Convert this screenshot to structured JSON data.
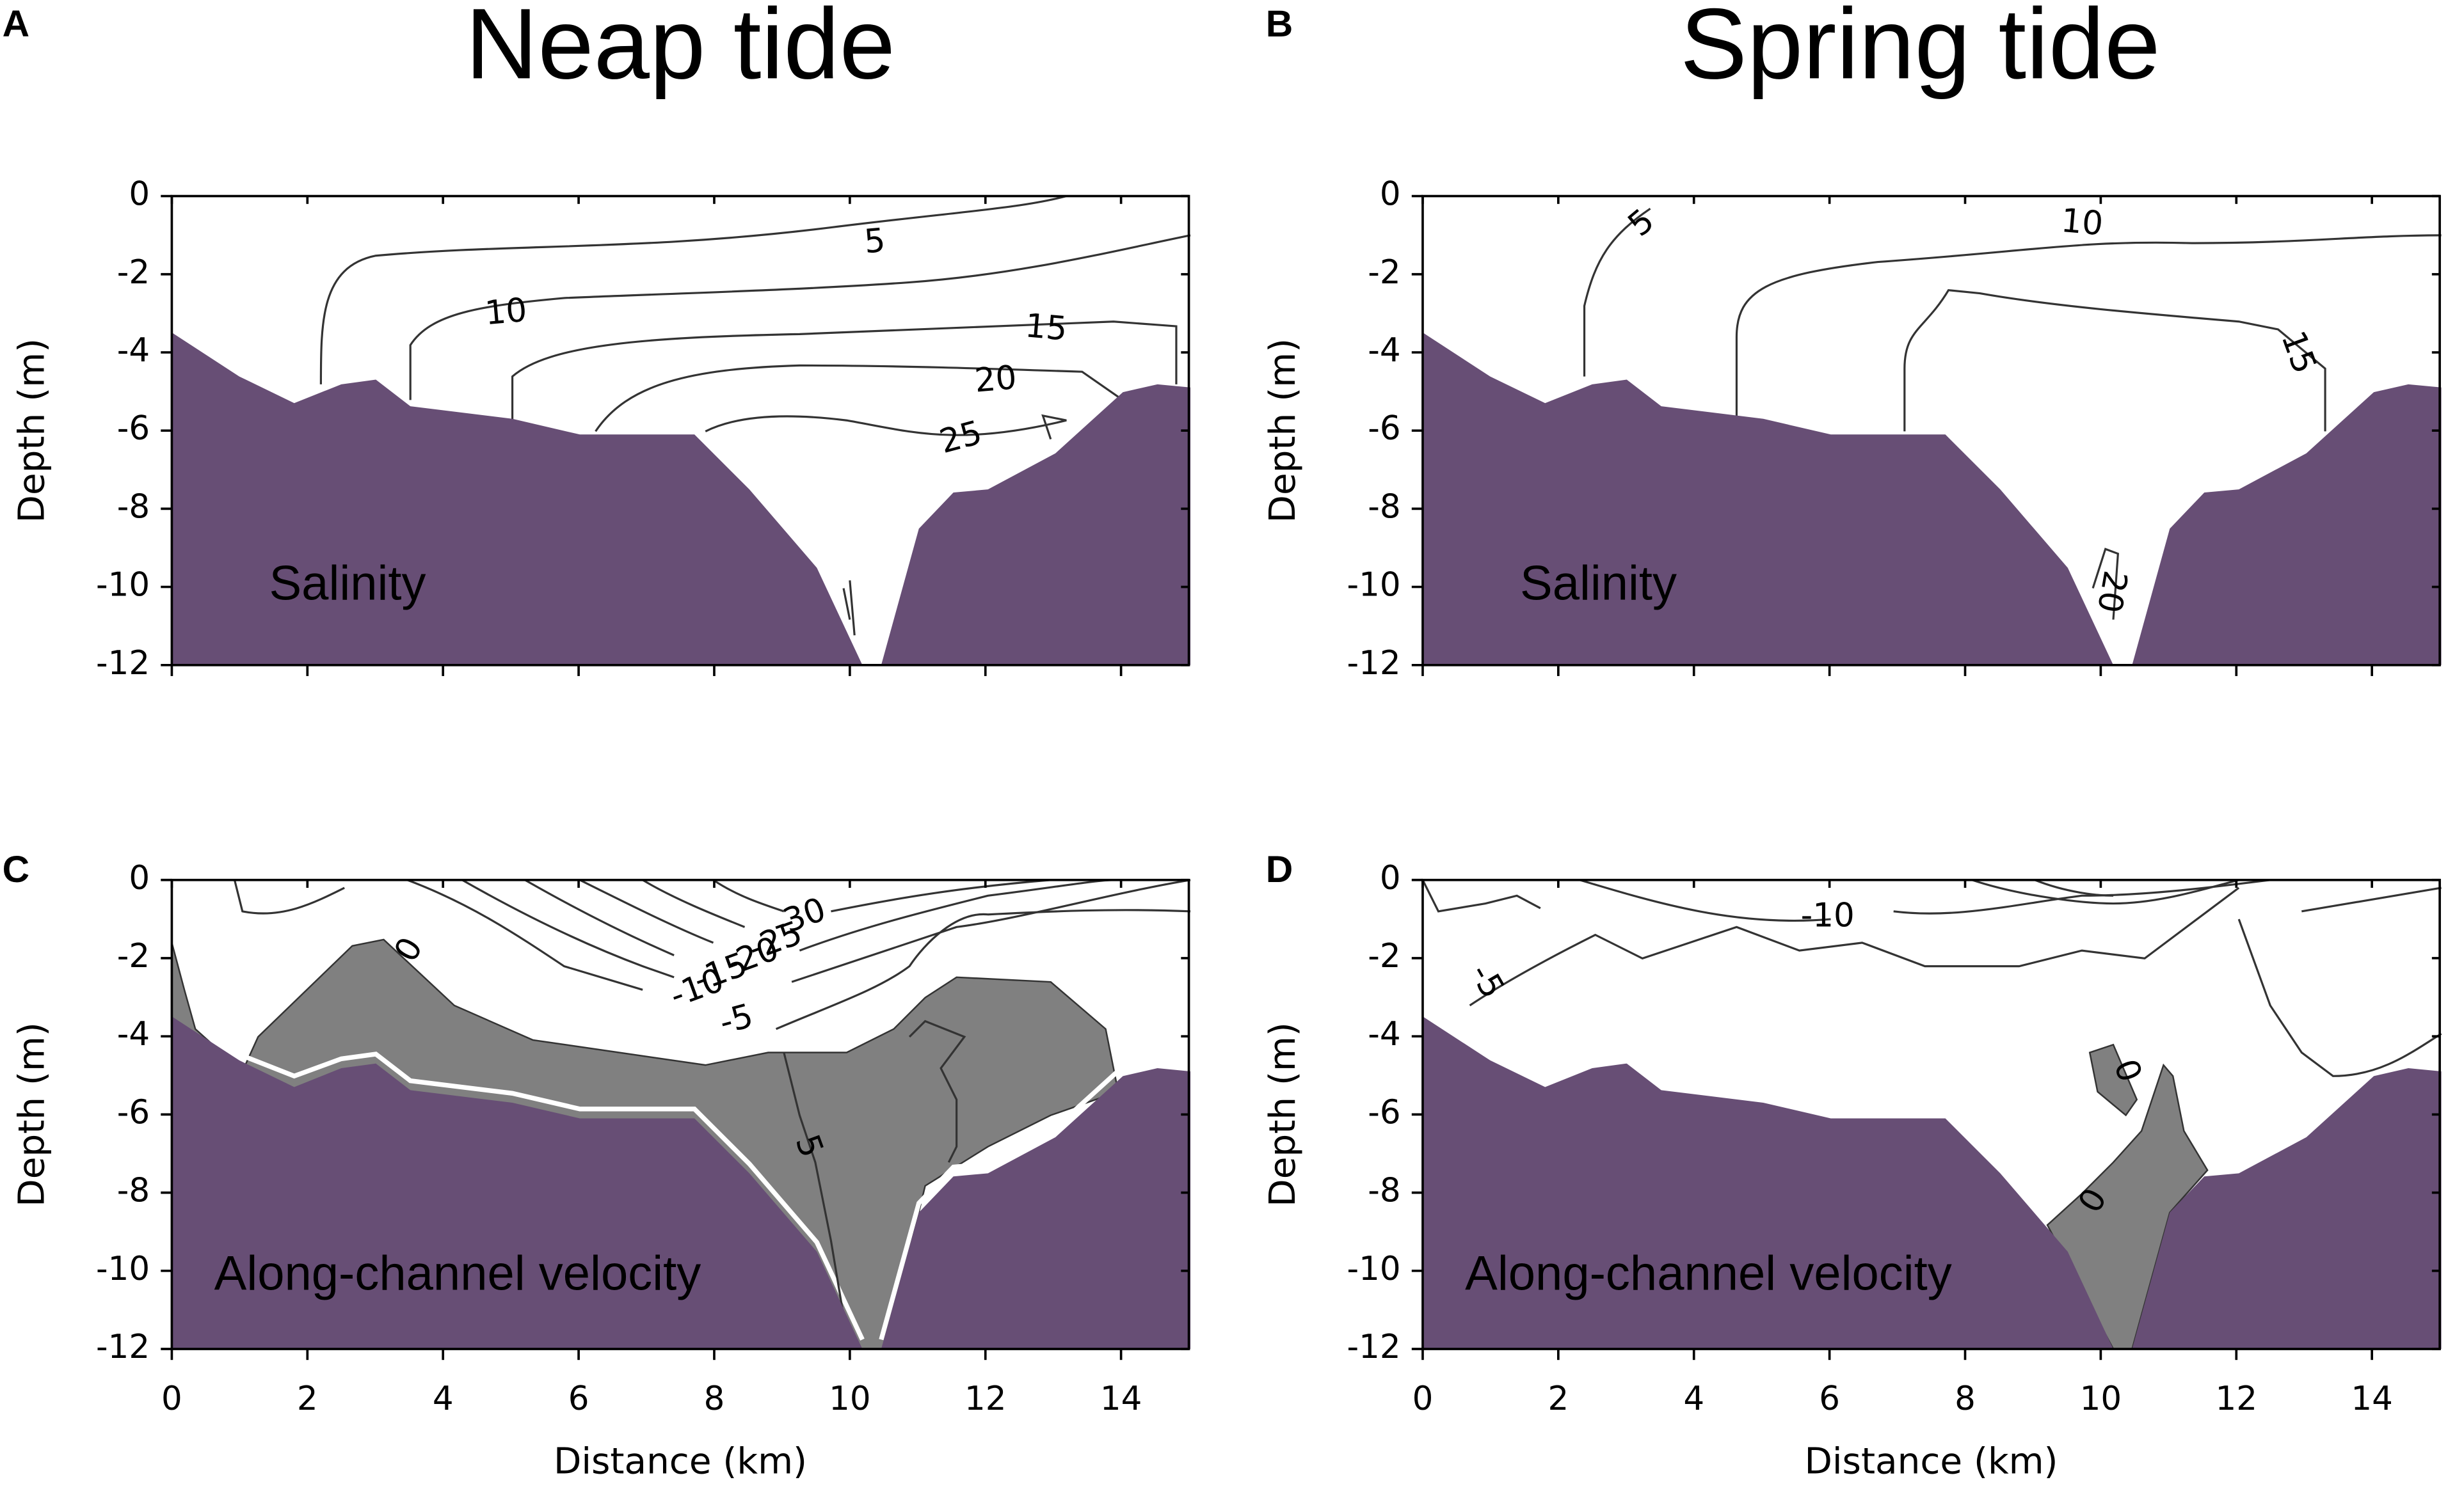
{
  "chart_data": [
    {
      "type": "contour",
      "panel": "A",
      "title": "Neap tide",
      "label": "Salinity",
      "ylabel": "Depth (m)",
      "xlim": [
        0,
        15
      ],
      "ylim": [
        -12,
        0
      ],
      "xticks": [
        0,
        2,
        4,
        6,
        8,
        10,
        12,
        14
      ],
      "yticks": [
        0,
        -2,
        -4,
        -6,
        -8,
        -10,
        -12
      ],
      "xtick_labels": false,
      "contour_labels": [
        "5",
        "10",
        "15",
        "20",
        "25"
      ]
    },
    {
      "type": "contour",
      "panel": "B",
      "title": "Spring tide",
      "label": "Salinity",
      "ylabel": "Depth (m)",
      "xlim": [
        0,
        15
      ],
      "ylim": [
        -12,
        0
      ],
      "xticks": [
        0,
        2,
        4,
        6,
        8,
        10,
        12,
        14
      ],
      "yticks": [
        0,
        -2,
        -4,
        -6,
        -8,
        -10,
        -12
      ],
      "xtick_labels": false,
      "contour_labels": [
        "5",
        "10",
        "15",
        "20"
      ]
    },
    {
      "type": "contour",
      "panel": "C",
      "label": "Along-channel  velocity",
      "ylabel": "Depth (m)",
      "xlabel": "Distance (km)",
      "xlim": [
        0,
        15
      ],
      "ylim": [
        -12,
        0
      ],
      "xticks": [
        0,
        2,
        4,
        6,
        8,
        10,
        12,
        14
      ],
      "yticks": [
        0,
        -2,
        -4,
        -6,
        -8,
        -10,
        -12
      ],
      "xtick_labels": true,
      "contour_labels": [
        "0",
        "-10",
        "-15",
        "-20",
        "-25",
        "-30",
        "-5",
        "5"
      ]
    },
    {
      "type": "contour",
      "panel": "D",
      "label": "Along-channel  velocity",
      "ylabel": "Depth (m)",
      "xlabel": "Distance (km)",
      "xlim": [
        0,
        15
      ],
      "ylim": [
        -12,
        0
      ],
      "xticks": [
        0,
        2,
        4,
        6,
        8,
        10,
        12,
        14
      ],
      "yticks": [
        0,
        -2,
        -4,
        -6,
        -8,
        -10,
        -12
      ],
      "xtick_labels": true,
      "contour_labels": [
        "-10",
        "-5",
        "0",
        "0"
      ]
    }
  ]
}
